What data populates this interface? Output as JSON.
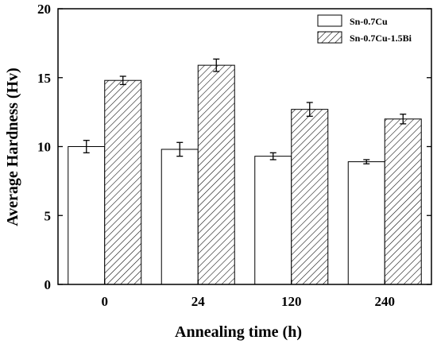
{
  "chart_data": {
    "type": "bar",
    "xlabel": "Annealing time (h)",
    "ylabel": "Average Hardness (Hv)",
    "categories": [
      "0",
      "24",
      "120",
      "240"
    ],
    "ylim": [
      0,
      20
    ],
    "yticks": [
      0,
      5,
      10,
      15,
      20
    ],
    "grid": false,
    "legend_position": "top-right",
    "series": [
      {
        "name": "Sn-0.7Cu",
        "values": [
          10.0,
          9.8,
          9.3,
          8.9
        ],
        "errors": [
          0.45,
          0.5,
          0.25,
          0.15
        ],
        "fill": "plain",
        "color": "#ffffff"
      },
      {
        "name": "Sn-0.7Cu-1.5Bi",
        "values": [
          14.8,
          15.9,
          12.7,
          12.0
        ],
        "errors": [
          0.3,
          0.45,
          0.5,
          0.35
        ],
        "fill": "hatched",
        "color": "#ffffff"
      }
    ]
  }
}
